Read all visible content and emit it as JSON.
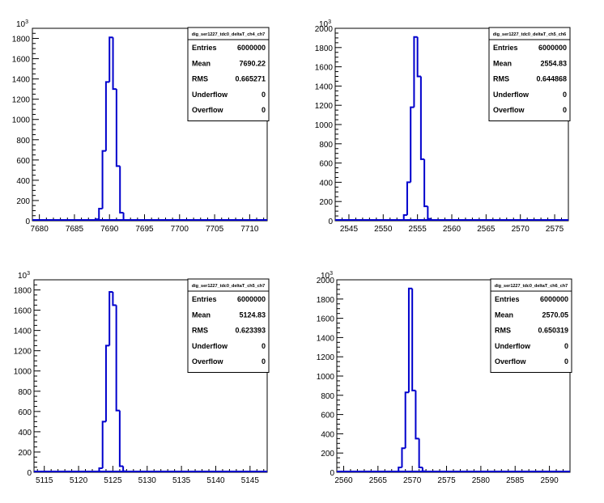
{
  "chart_data": [
    {
      "type": "histogram",
      "title": "",
      "xlabel": "",
      "ylabel": "",
      "y_exponent_label": "10",
      "y_exponent": "3",
      "xlim": [
        7679,
        7712.5
      ],
      "ylim": [
        0,
        1900
      ],
      "x_ticks": [
        7680,
        7685,
        7690,
        7695,
        7700,
        7705,
        7710
      ],
      "x_tick_labels": [
        "7680",
        "7685",
        "7690",
        "7695",
        "7700",
        "7705",
        "7710"
      ],
      "y_ticks": [
        0,
        200,
        400,
        600,
        800,
        1000,
        1200,
        1400,
        1600,
        1800
      ],
      "y_tick_labels": [
        "0",
        "200",
        "400",
        "600",
        "800",
        "1000",
        "1200",
        "1400",
        "1600",
        "1800"
      ],
      "bin_edges": [
        7688,
        7688.5,
        7689,
        7689.5,
        7690,
        7690.5,
        7691,
        7691.5,
        7692
      ],
      "values": [
        15,
        120,
        690,
        1370,
        1810,
        1300,
        540,
        80
      ],
      "color": "#0000cc",
      "stats": {
        "name": "dig_ser1227_tdc0_deltaT_ch4_ch7",
        "rows": [
          {
            "label": "Entries",
            "value": "6000000"
          },
          {
            "label": "Mean",
            "value": "7690.22"
          },
          {
            "label": "RMS",
            "value": "0.665271"
          },
          {
            "label": "Underflow",
            "value": "0"
          },
          {
            "label": "Overflow",
            "value": "0"
          }
        ]
      }
    },
    {
      "type": "histogram",
      "title": "",
      "xlabel": "",
      "ylabel": "",
      "y_exponent_label": "10",
      "y_exponent": "3",
      "xlim": [
        2543,
        2577
      ],
      "ylim": [
        0,
        2000
      ],
      "x_ticks": [
        2545,
        2550,
        2555,
        2560,
        2565,
        2570,
        2575
      ],
      "x_tick_labels": [
        "2545",
        "2550",
        "2555",
        "2560",
        "2565",
        "2570",
        "2575"
      ],
      "y_ticks": [
        0,
        200,
        400,
        600,
        800,
        1000,
        1200,
        1400,
        1600,
        1800,
        2000
      ],
      "y_tick_labels": [
        "0",
        "200",
        "400",
        "600",
        "800",
        "1000",
        "1200",
        "1400",
        "1600",
        "1800",
        "2000"
      ],
      "bin_edges": [
        2553,
        2553.5,
        2554,
        2554.5,
        2555,
        2555.5,
        2556,
        2556.5,
        2557
      ],
      "values": [
        60,
        400,
        1180,
        1910,
        1500,
        640,
        150,
        20
      ],
      "color": "#0000cc",
      "stats": {
        "name": "dig_ser1227_tdc0_deltaT_ch5_ch6",
        "rows": [
          {
            "label": "Entries",
            "value": "6000000"
          },
          {
            "label": "Mean",
            "value": "2554.83"
          },
          {
            "label": "RMS",
            "value": "0.644868"
          },
          {
            "label": "Underflow",
            "value": "0"
          },
          {
            "label": "Overflow",
            "value": "0"
          }
        ]
      }
    },
    {
      "type": "histogram",
      "title": "",
      "xlabel": "",
      "ylabel": "",
      "y_exponent_label": "10",
      "y_exponent": "3",
      "xlim": [
        5113.5,
        5147.5
      ],
      "ylim": [
        0,
        1900
      ],
      "x_ticks": [
        5115,
        5120,
        5125,
        5130,
        5135,
        5140,
        5145
      ],
      "x_tick_labels": [
        "5115",
        "5120",
        "5125",
        "5130",
        "5135",
        "5140",
        "5145"
      ],
      "y_ticks": [
        0,
        200,
        400,
        600,
        800,
        1000,
        1200,
        1400,
        1600,
        1800
      ],
      "y_tick_labels": [
        "0",
        "200",
        "400",
        "600",
        "800",
        "1000",
        "1200",
        "1400",
        "1600",
        "1800"
      ],
      "bin_edges": [
        5123,
        5123.5,
        5124,
        5124.5,
        5125,
        5125.5,
        5126,
        5126.5,
        5127
      ],
      "values": [
        40,
        500,
        1250,
        1780,
        1650,
        610,
        60,
        10
      ],
      "color": "#0000cc",
      "stats": {
        "name": "dig_ser1227_tdc0_deltaT_ch5_ch7",
        "rows": [
          {
            "label": "Entries",
            "value": "6000000"
          },
          {
            "label": "Mean",
            "value": "5124.83"
          },
          {
            "label": "RMS",
            "value": "0.623393"
          },
          {
            "label": "Underflow",
            "value": "0"
          },
          {
            "label": "Overflow",
            "value": "0"
          }
        ]
      }
    },
    {
      "type": "histogram",
      "title": "",
      "xlabel": "",
      "ylabel": "",
      "y_exponent_label": "10",
      "y_exponent": "3",
      "xlim": [
        2559,
        2593
      ],
      "ylim": [
        0,
        2000
      ],
      "x_ticks": [
        2560,
        2565,
        2570,
        2575,
        2580,
        2585,
        2590
      ],
      "x_tick_labels": [
        "2560",
        "2565",
        "2570",
        "2575",
        "2580",
        "2585",
        "2590"
      ],
      "y_ticks": [
        0,
        200,
        400,
        600,
        800,
        1000,
        1200,
        1400,
        1600,
        1800,
        2000
      ],
      "y_tick_labels": [
        "0",
        "200",
        "400",
        "600",
        "800",
        "1000",
        "1200",
        "1400",
        "1600",
        "1800",
        "2000"
      ],
      "bin_edges": [
        2568,
        2568.5,
        2569,
        2569.5,
        2570,
        2570.5,
        2571,
        2571.5,
        2572
      ],
      "values": [
        50,
        250,
        830,
        1910,
        850,
        350,
        50,
        10
      ],
      "color": "#0000cc",
      "stats": {
        "name": "dig_ser1227_tdc0_deltaT_ch6_ch7",
        "rows": [
          {
            "label": "Entries",
            "value": "6000000"
          },
          {
            "label": "Mean",
            "value": "2570.05"
          },
          {
            "label": "RMS",
            "value": "0.650319"
          },
          {
            "label": "Underflow",
            "value": "0"
          },
          {
            "label": "Overflow",
            "value": "0"
          }
        ]
      }
    }
  ]
}
